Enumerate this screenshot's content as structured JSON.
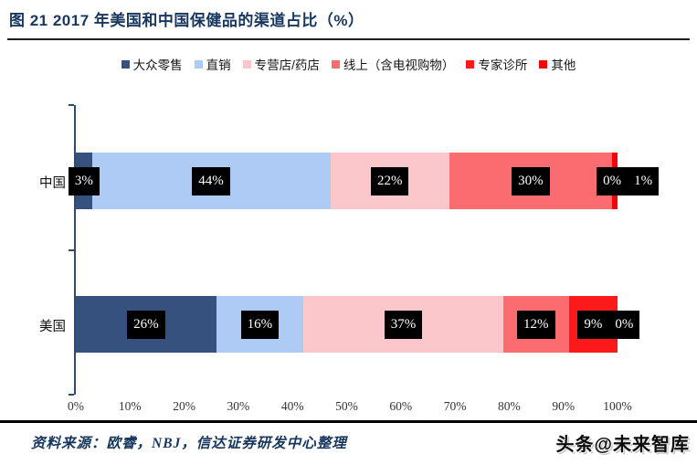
{
  "title": "图  21 2017 年美国和中国保健品的渠道占比（%）",
  "footer": {
    "source": "资料来源：欧睿，NBJ，信达证券研发中心整理",
    "watermark": "头条@未来智库"
  },
  "chart_data": {
    "type": "bar",
    "stacked": true,
    "orientation": "horizontal",
    "title": "图 21 2017 年美国和中国保健品的渠道占比（%）",
    "categories": [
      "中国",
      "美国"
    ],
    "series": [
      {
        "name": "大众零售",
        "color": "#36517E",
        "values": [
          3,
          26
        ]
      },
      {
        "name": "直销",
        "color": "#AECBF5",
        "values": [
          44,
          16
        ]
      },
      {
        "name": "专营店/药店",
        "color": "#FBC7CA",
        "values": [
          22,
          37
        ]
      },
      {
        "name": "线上（含电视购物）",
        "color": "#FB6C70",
        "values": [
          30,
          12
        ]
      },
      {
        "name": "专家诊所",
        "color": "#FB1919",
        "values": [
          0,
          9
        ]
      },
      {
        "name": "其他",
        "color": "#F40505",
        "values": [
          1,
          0
        ]
      }
    ],
    "x_ticks": [
      "0%",
      "10%",
      "20%",
      "30%",
      "40%",
      "50%",
      "60%",
      "70%",
      "80%",
      "90%",
      "100%"
    ],
    "xlim": [
      0,
      100
    ],
    "data_label_format": "{value}%",
    "data_label_style": "black-box-white-text",
    "legend_position": "top",
    "grid": false,
    "axis_color": "#2E4B73"
  }
}
